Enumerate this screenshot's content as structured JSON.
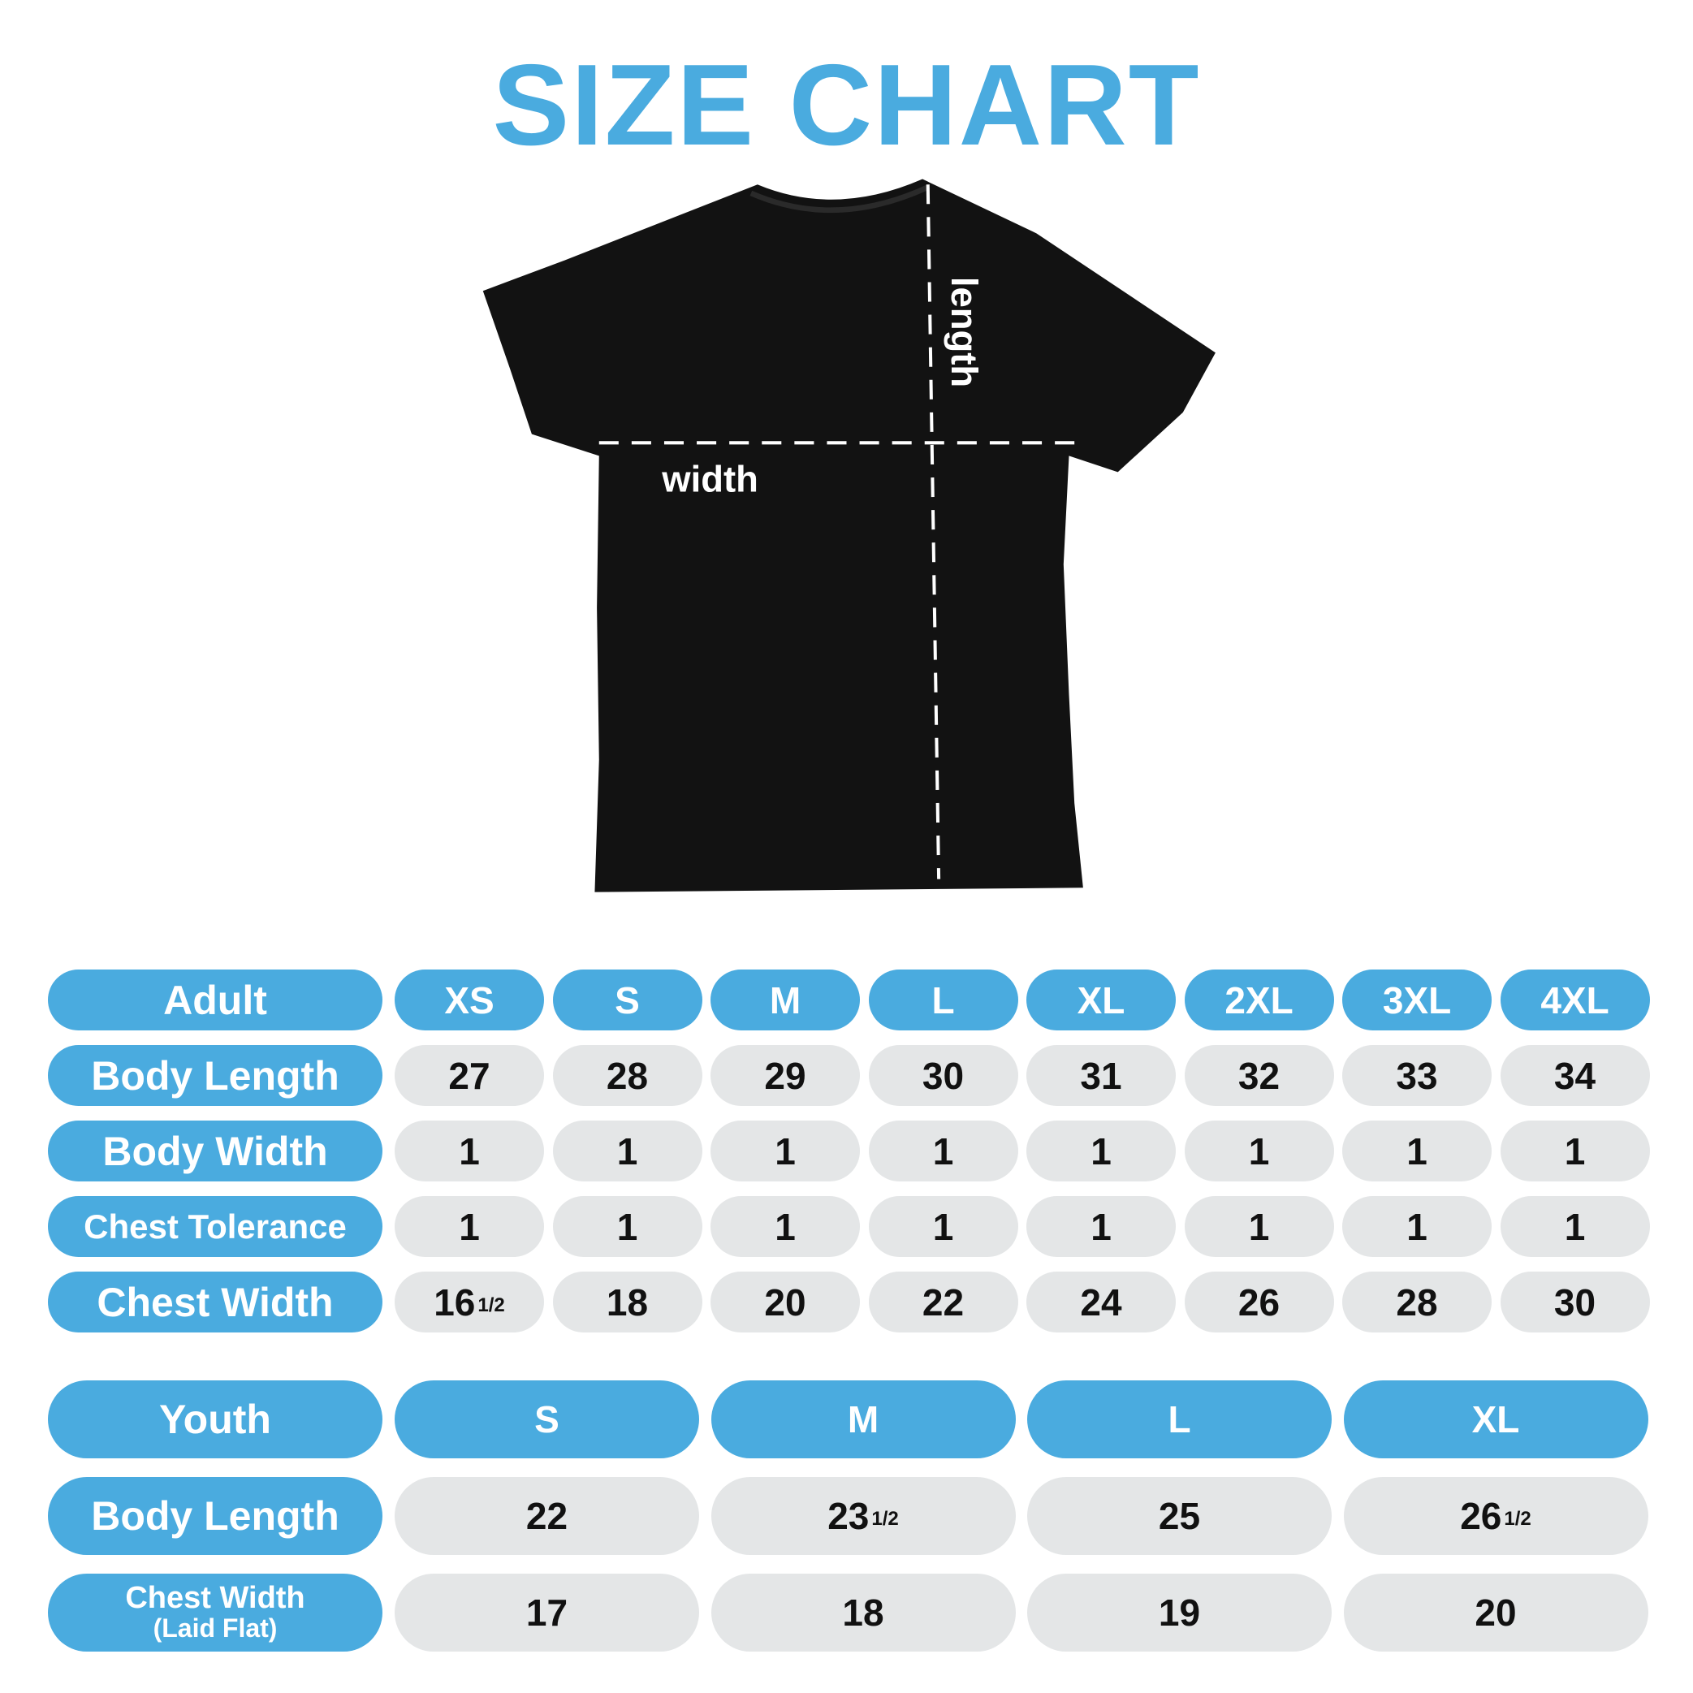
{
  "title": "SIZE CHART",
  "colors": {
    "accent": "#4aabdf",
    "cell": "#e4e6e7",
    "shirt": "#111111"
  },
  "shirt": {
    "width_label": "width",
    "length_label": "length"
  },
  "adult": {
    "header": "Adult",
    "sizes": [
      "XS",
      "S",
      "M",
      "L",
      "XL",
      "2XL",
      "3XL",
      "4XL"
    ],
    "rows": [
      {
        "label": "Body Length",
        "values": [
          {
            "whole": "27"
          },
          {
            "whole": "28"
          },
          {
            "whole": "29"
          },
          {
            "whole": "30"
          },
          {
            "whole": "31"
          },
          {
            "whole": "32"
          },
          {
            "whole": "33"
          },
          {
            "whole": "34"
          }
        ]
      },
      {
        "label": "Body Width",
        "values": [
          {
            "whole": "1"
          },
          {
            "whole": "1"
          },
          {
            "whole": "1"
          },
          {
            "whole": "1"
          },
          {
            "whole": "1"
          },
          {
            "whole": "1"
          },
          {
            "whole": "1"
          },
          {
            "whole": "1"
          }
        ]
      },
      {
        "label": "Chest Tolerance",
        "values": [
          {
            "whole": "1"
          },
          {
            "whole": "1"
          },
          {
            "whole": "1"
          },
          {
            "whole": "1"
          },
          {
            "whole": "1"
          },
          {
            "whole": "1"
          },
          {
            "whole": "1"
          },
          {
            "whole": "1"
          }
        ]
      },
      {
        "label": "Chest Width",
        "values": [
          {
            "whole": "16",
            "frac": "1/2"
          },
          {
            "whole": "18"
          },
          {
            "whole": "20"
          },
          {
            "whole": "22"
          },
          {
            "whole": "24"
          },
          {
            "whole": "26"
          },
          {
            "whole": "28"
          },
          {
            "whole": "30"
          }
        ]
      }
    ]
  },
  "youth": {
    "header": "Youth",
    "sizes": [
      "S",
      "M",
      "L",
      "XL"
    ],
    "rows": [
      {
        "label": "Body Length",
        "values": [
          {
            "whole": "22"
          },
          {
            "whole": "23",
            "frac": "1/2"
          },
          {
            "whole": "25"
          },
          {
            "whole": "26",
            "frac": "1/2"
          }
        ]
      },
      {
        "label": "Chest Width",
        "sublabel": "(Laid Flat)",
        "values": [
          {
            "whole": "17"
          },
          {
            "whole": "18"
          },
          {
            "whole": "19"
          },
          {
            "whole": "20"
          }
        ]
      }
    ]
  }
}
